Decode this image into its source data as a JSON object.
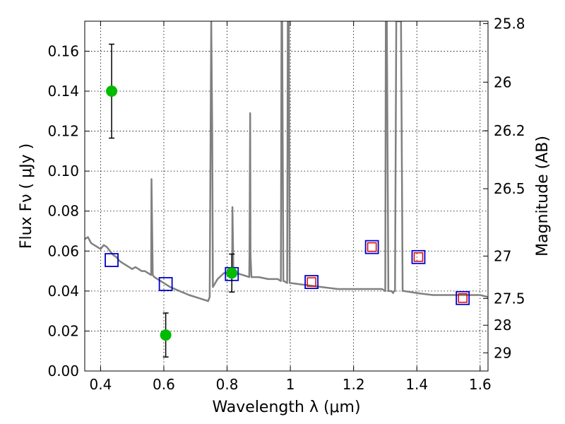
{
  "chart_data": {
    "type": "scatter",
    "xlabel": "Wavelength  λ (μm)",
    "ylabel": "Flux  Fν  ( μJy )",
    "ylabel_right": "Magnitude (AB)",
    "xlim": [
      0.35,
      1.625
    ],
    "ylim": [
      0.0,
      0.175
    ],
    "grid": true,
    "x_ticks": [
      0.4,
      0.6,
      0.8,
      1.0,
      1.2,
      1.4,
      1.6
    ],
    "x_tick_labels": [
      "0.4",
      "0.6",
      "0.8",
      "1",
      "1.2",
      "1.4",
      "1.6"
    ],
    "y_ticks": [
      0.0,
      0.02,
      0.04,
      0.06,
      0.08,
      0.1,
      0.12,
      0.14,
      0.16
    ],
    "y_tick_labels": [
      "0.00",
      "0.02",
      "0.04",
      "0.06",
      "0.08",
      "0.10",
      "0.12",
      "0.14",
      "0.16"
    ],
    "right_ticks": [
      {
        "mag": "25.8",
        "flux": 0.1738
      },
      {
        "mag": "26",
        "flux": 0.1445
      },
      {
        "mag": "26.2",
        "flux": 0.1202
      },
      {
        "mag": "26.5",
        "flux": 0.0912
      },
      {
        "mag": "27",
        "flux": 0.0575
      },
      {
        "mag": "27.5",
        "flux": 0.0363
      },
      {
        "mag": "28",
        "flux": 0.0229
      },
      {
        "mag": "29",
        "flux": 0.0091
      }
    ],
    "colors": {
      "spectrum": "#808080",
      "detections": "#00bb00",
      "model_blue": "#0000cc",
      "model_red": "#dd0000",
      "errorbar": "#000000"
    },
    "series": [
      {
        "kind": "line",
        "x": [
          0.35,
          0.36,
          0.37,
          0.38,
          0.39,
          0.4,
          0.41,
          0.42,
          0.43,
          0.44,
          0.45,
          0.46,
          0.47,
          0.48,
          0.49,
          0.5,
          0.51,
          0.52,
          0.53,
          0.54,
          0.55,
          0.56,
          0.561,
          0.565,
          0.57,
          0.58,
          0.6,
          0.62,
          0.65,
          0.68,
          0.7,
          0.72,
          0.74,
          0.745,
          0.748,
          0.75,
          0.753,
          0.755,
          0.77,
          0.79,
          0.8,
          0.81,
          0.816,
          0.817,
          0.82,
          0.83,
          0.85,
          0.87,
          0.871,
          0.873,
          0.874,
          0.877,
          0.9,
          0.93,
          0.96,
          0.97,
          0.972,
          0.974,
          0.978,
          0.98,
          0.99,
          0.992,
          0.995,
          0.998,
          1.0,
          1.05,
          1.1,
          1.15,
          1.2,
          1.25,
          1.29,
          1.3,
          1.302,
          1.305,
          1.31,
          1.32,
          1.325,
          1.328,
          1.331,
          1.335,
          1.34,
          1.345,
          1.35,
          1.355,
          1.36,
          1.4,
          1.45,
          1.5,
          1.55,
          1.6,
          1.625
        ],
        "y": [
          0.066,
          0.067,
          0.064,
          0.063,
          0.062,
          0.061,
          0.063,
          0.062,
          0.06,
          0.058,
          0.057,
          0.055,
          0.054,
          0.053,
          0.052,
          0.051,
          0.052,
          0.051,
          0.05,
          0.05,
          0.049,
          0.048,
          0.096,
          0.048,
          0.047,
          0.046,
          0.044,
          0.042,
          0.04,
          0.038,
          0.037,
          0.036,
          0.035,
          0.037,
          0.12,
          0.175,
          0.12,
          0.042,
          0.046,
          0.049,
          0.049,
          0.05,
          0.048,
          0.082,
          0.05,
          0.049,
          0.048,
          0.047,
          0.058,
          0.129,
          0.058,
          0.047,
          0.047,
          0.046,
          0.046,
          0.045,
          0.175,
          0.175,
          0.045,
          0.045,
          0.044,
          0.175,
          0.175,
          0.044,
          0.044,
          0.043,
          0.042,
          0.041,
          0.041,
          0.041,
          0.041,
          0.04,
          0.175,
          0.175,
          0.04,
          0.04,
          0.039,
          0.04,
          0.04,
          0.175,
          0.175,
          0.175,
          0.175,
          0.04,
          0.04,
          0.039,
          0.038,
          0.038,
          0.038,
          0.038,
          0.037
        ]
      },
      {
        "kind": "points",
        "x": [
          0.435,
          0.606,
          0.815
        ],
        "y": [
          0.14,
          0.018,
          0.049
        ],
        "yerr": [
          0.0235,
          0.011,
          0.0095
        ]
      },
      {
        "kind": "model_squares",
        "x": [
          0.435,
          0.606,
          0.815,
          1.067,
          1.258,
          1.405,
          1.545
        ],
        "y_blue": [
          0.0555,
          0.0435,
          0.0485,
          0.0445,
          0.062,
          0.057,
          0.0365
        ],
        "y_red": [
          null,
          null,
          null,
          0.0445,
          0.062,
          0.057,
          0.0365
        ]
      }
    ]
  }
}
